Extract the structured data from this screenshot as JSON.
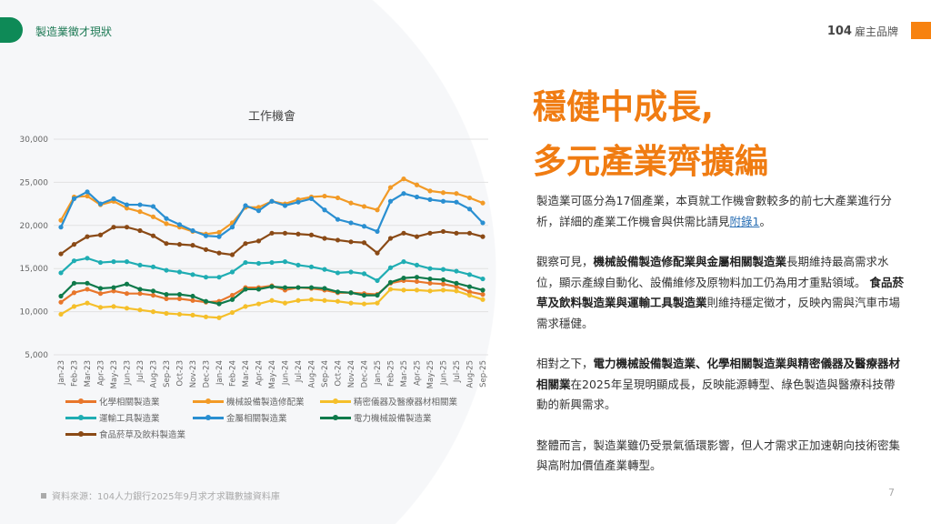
{
  "header": {
    "section": "製造業徵才現狀",
    "brand_num": "104",
    "brand_text": "雇主品牌"
  },
  "title": {
    "line1": "穩健中成長,",
    "line2": "多元產業齊擴編"
  },
  "body": {
    "p1": {
      "a": "製造業可區分為17個產業，本頁就工作機會數較多的前七大產業進行分析，詳細的產業工作機會與供需比請見",
      "link": "附錄1",
      "b": "。"
    },
    "p2": {
      "a": "觀察可見，",
      "b1": "機械設備製造修配業與金屬相關製造業",
      "c": "長期維持最高需求水位，顯示產線自動化、設備維修及原物料加工仍為用才重點領域。 ",
      "b2": "食品菸草及飲料製造業與運輸工具製造業",
      "d": "則維持穩定徵才，反映內需與汽車市場需求穩健。"
    },
    "p3": {
      "a": "相對之下，",
      "b1": "電力機械設備製造業、化學相關製造業與精密儀器及醫療器材相關業",
      "c": "在2025年呈現明顯成長，反映能源轉型、綠色製造與醫療科技帶動的新興需求。"
    },
    "p4": {
      "a": "整體而言，製造業雖仍受景氣循環影響，但人才需求正加速朝向技術密集與高附加價值產業轉型。"
    }
  },
  "footer": {
    "source": "資料來源：104人力銀行2025年9月求才求職數據資料庫",
    "page": "7"
  },
  "chart_data": {
    "type": "line",
    "title": "工作機會",
    "ylim": [
      5000,
      30000
    ],
    "yticks": [
      "5,000",
      "10,000",
      "15,000",
      "20,000",
      "25,000",
      "30,000"
    ],
    "ytick_values": [
      5000,
      10000,
      15000,
      20000,
      25000,
      30000
    ],
    "x": [
      "Jan-23",
      "Feb-23",
      "Mar-23",
      "Apr-23",
      "May-23",
      "Jun-23",
      "Jul-23",
      "Aug-23",
      "Sep-23",
      "Oct-23",
      "Nov-23",
      "Dec-23",
      "Jan-24",
      "Feb-24",
      "Mar-24",
      "Apr-24",
      "May-24",
      "Jun-24",
      "Jul-24",
      "Aug-24",
      "Sep-24",
      "Oct-24",
      "Nov-24",
      "Dec-24",
      "Jan-25",
      "Feb-25",
      "Mar-25",
      "Apr-25",
      "May-25",
      "Jun-25",
      "Jul-25",
      "Aug-25",
      "Sep-25"
    ],
    "legend_position": "bottom",
    "series": [
      {
        "name": "化學相關製造業",
        "color": "#e8762b",
        "values": [
          11100,
          12200,
          12600,
          12100,
          12400,
          12100,
          12100,
          11900,
          11500,
          11500,
          11300,
          11100,
          11200,
          11900,
          12800,
          12800,
          13000,
          12500,
          12800,
          12700,
          12500,
          12200,
          12200,
          12100,
          12000,
          13300,
          13600,
          13500,
          13300,
          13200,
          12900,
          12300,
          12000
        ]
      },
      {
        "name": "機械設備製造修配業",
        "color": "#f29a26",
        "values": [
          20600,
          23300,
          23400,
          22400,
          22800,
          22000,
          21600,
          21000,
          20200,
          19800,
          19300,
          19000,
          19200,
          20300,
          22100,
          22100,
          22800,
          22500,
          23000,
          23300,
          23400,
          23200,
          22600,
          22200,
          21800,
          24400,
          25400,
          24700,
          24000,
          23800,
          23700,
          23200,
          22600
        ]
      },
      {
        "name": "精密儀器及醫療器材相關業",
        "color": "#f5bf2a",
        "values": [
          9700,
          10600,
          11000,
          10500,
          10600,
          10400,
          10200,
          10000,
          9800,
          9700,
          9600,
          9400,
          9300,
          9900,
          10600,
          10900,
          11300,
          11000,
          11300,
          11400,
          11300,
          11200,
          11000,
          10900,
          11000,
          12600,
          12500,
          12500,
          12400,
          12500,
          12400,
          11900,
          11400
        ]
      },
      {
        "name": "運輸工具製造業",
        "color": "#1fadb3",
        "values": [
          14500,
          15900,
          16200,
          15700,
          15800,
          15800,
          15400,
          15200,
          14800,
          14600,
          14300,
          14000,
          14000,
          14600,
          15700,
          15600,
          15700,
          15800,
          15400,
          15200,
          14900,
          14500,
          14600,
          14400,
          13600,
          15100,
          15800,
          15400,
          15000,
          14900,
          14700,
          14300,
          13800
        ]
      },
      {
        "name": "金屬相關製造業",
        "color": "#2a8fd1",
        "values": [
          19800,
          23100,
          23900,
          22500,
          23100,
          22400,
          22400,
          22200,
          20800,
          20100,
          19400,
          18800,
          18700,
          19800,
          22300,
          21700,
          22800,
          22300,
          22700,
          23100,
          21800,
          20700,
          20300,
          19900,
          19300,
          22800,
          23700,
          23300,
          23000,
          22800,
          22700,
          21900,
          20300
        ]
      },
      {
        "name": "電力機械設備製造業",
        "color": "#0f7a4b",
        "values": [
          11800,
          13300,
          13300,
          12700,
          12800,
          13200,
          12600,
          12400,
          12000,
          12000,
          11800,
          11200,
          10900,
          11400,
          12600,
          12600,
          12900,
          12800,
          12800,
          12800,
          12700,
          12300,
          12200,
          11900,
          11900,
          13400,
          13900,
          14000,
          13800,
          13700,
          13300,
          12900,
          12500
        ]
      },
      {
        "name": "食品菸草及飲料製造業",
        "color": "#8a4a16",
        "values": [
          16700,
          17800,
          18700,
          18900,
          19800,
          19800,
          19400,
          18800,
          17900,
          17800,
          17700,
          17200,
          16800,
          16600,
          17900,
          18200,
          19100,
          19100,
          19000,
          18900,
          18500,
          18300,
          18100,
          18000,
          16800,
          18500,
          19100,
          18700,
          19100,
          19300,
          19100,
          19100,
          18700
        ]
      }
    ]
  }
}
